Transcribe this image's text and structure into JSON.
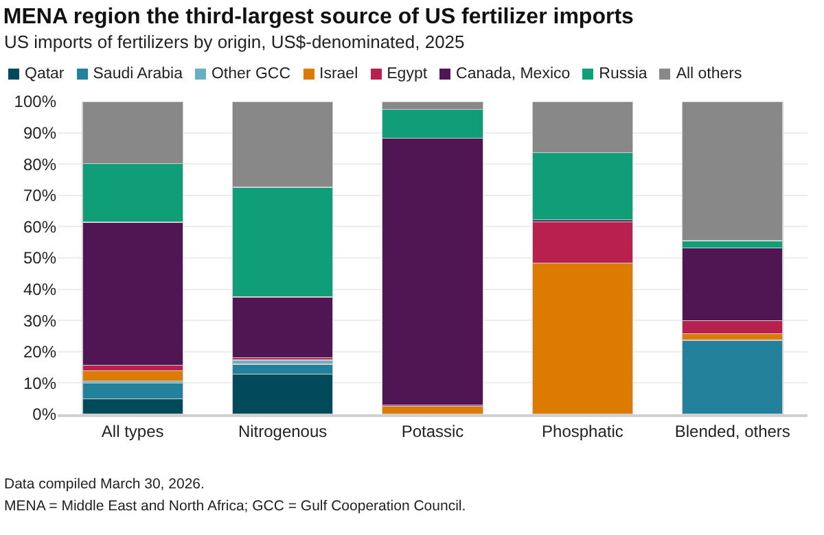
{
  "chart_data": {
    "type": "bar",
    "title": "MENA region the third-largest source of US fertilizer imports",
    "subtitle": "US imports of fertilizers by origin, US$-denominated, 2025",
    "categories": [
      "All types",
      "Nitrogenous",
      "Potassic",
      "Phosphatic",
      "Blended, others"
    ],
    "stacked": true,
    "series": [
      {
        "name": "Qatar",
        "color": "#004a5c",
        "values": [
          5,
          12.8,
          0,
          0,
          0
        ]
      },
      {
        "name": "Saudi Arabia",
        "color": "#23819c",
        "values": [
          5,
          3.2,
          0,
          0,
          23.5
        ]
      },
      {
        "name": "Other GCC",
        "color": "#6ab0c2",
        "values": [
          0.6,
          1.2,
          0,
          0,
          0.3
        ]
      },
      {
        "name": "Israel",
        "color": "#dd7a00",
        "values": [
          3.4,
          0.2,
          2.5,
          48.3,
          1.9
        ]
      },
      {
        "name": "Egypt",
        "color": "#b8204e",
        "values": [
          1.6,
          0.7,
          0.4,
          13.2,
          4.2
        ]
      },
      {
        "name": "Canada, Mexico",
        "color": "#501653",
        "values": [
          45.8,
          19.4,
          85.4,
          0.6,
          23.3
        ]
      },
      {
        "name": "Russia",
        "color": "#0f9e78",
        "values": [
          18.8,
          35.1,
          9.2,
          21.6,
          2.3
        ]
      },
      {
        "name": "All others",
        "color": "#888888",
        "values": [
          19.8,
          27.4,
          2.5,
          16.3,
          44.5
        ]
      }
    ],
    "ylim": [
      0,
      100
    ],
    "yticks": [
      {
        "value": 0,
        "label": "0%"
      },
      {
        "value": 10,
        "label": "10%"
      },
      {
        "value": 20,
        "label": "20%"
      },
      {
        "value": 30,
        "label": "30%"
      },
      {
        "value": 40,
        "label": "40%"
      },
      {
        "value": 50,
        "label": "50%"
      },
      {
        "value": 60,
        "label": "60%"
      },
      {
        "value": 70,
        "label": "70%"
      },
      {
        "value": 80,
        "label": "80%"
      },
      {
        "value": 90,
        "label": "90%"
      },
      {
        "value": 100,
        "label": "100%"
      }
    ],
    "grid": "y",
    "legend": "top",
    "annotations": [
      "Data compiled March 30, 2026.",
      "MENA = Middle East and North Africa; GCC = Gulf Cooperation Council."
    ]
  }
}
